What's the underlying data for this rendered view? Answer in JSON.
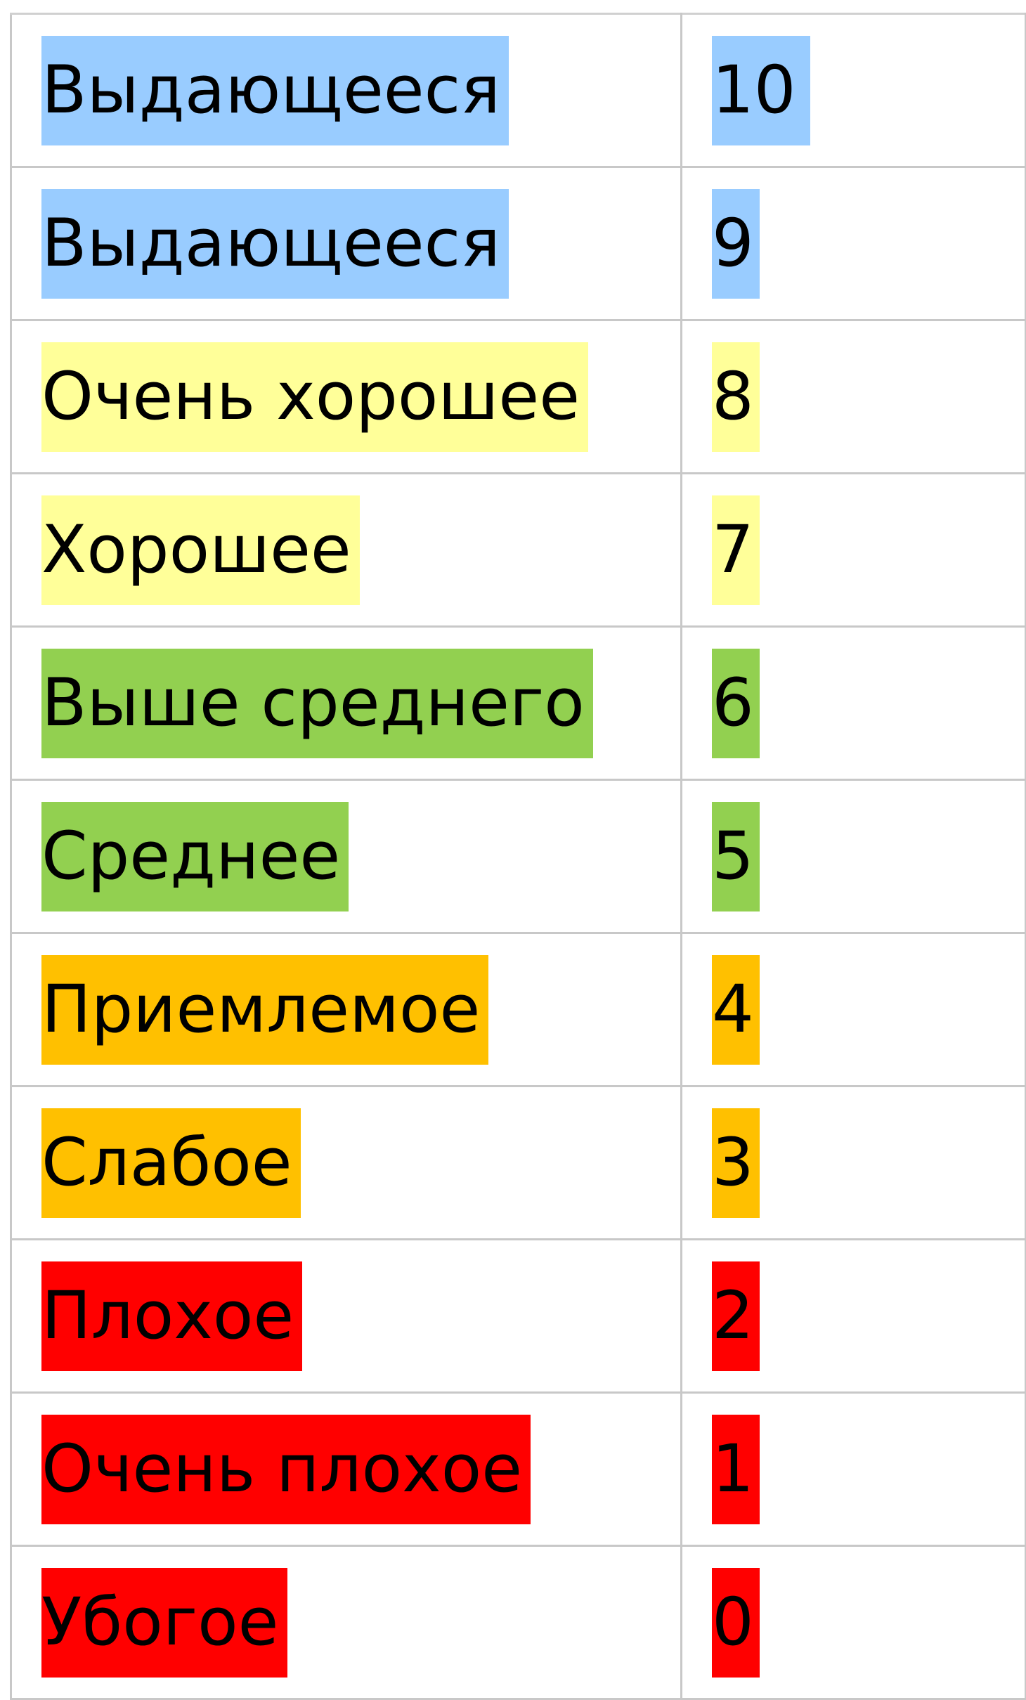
{
  "table": {
    "rows": [
      {
        "label": "Выдающееся",
        "score": "10",
        "color": "#99ccff"
      },
      {
        "label": "Выдающееся",
        "score": "9",
        "color": "#99ccff"
      },
      {
        "label": "Очень хорошее",
        "score": "8",
        "color": "#ffff99"
      },
      {
        "label": "Хорошее",
        "score": "7",
        "color": "#ffff99"
      },
      {
        "label": "Выше среднего",
        "score": "6",
        "color": "#92d050"
      },
      {
        "label": "Среднее",
        "score": "5",
        "color": "#92d050"
      },
      {
        "label": "Приемлемое",
        "score": "4",
        "color": "#ffc000"
      },
      {
        "label": "Слабое",
        "score": "3",
        "color": "#ffc000"
      },
      {
        "label": "Плохое",
        "score": "2",
        "color": "#ff0000"
      },
      {
        "label": "Очень плохое",
        "score": "1",
        "color": "#ff0000"
      },
      {
        "label": "Убогое",
        "score": "0",
        "color": "#ff0000"
      }
    ]
  }
}
